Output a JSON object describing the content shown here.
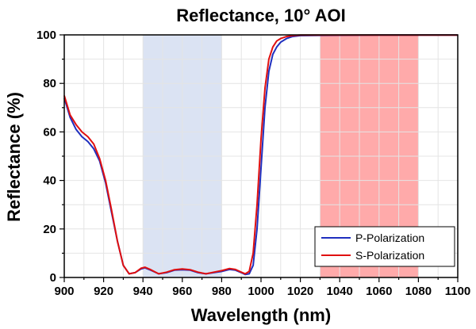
{
  "chart_data": {
    "type": "line",
    "title": "Reflectance, 10° AOI",
    "xlabel": "Wavelength (nm)",
    "ylabel": "Reflectance (%)",
    "xlim": [
      900,
      1100
    ],
    "ylim": [
      0,
      100
    ],
    "grid": true,
    "x_ticks": [
      "900",
      "920",
      "940",
      "960",
      "980",
      "1000",
      "1020",
      "1040",
      "1060",
      "1080",
      "1100"
    ],
    "y_ticks": [
      "0",
      "20",
      "40",
      "60",
      "80",
      "100"
    ],
    "bands": [
      {
        "from": 940,
        "to": 980,
        "color": "#dbe3f3"
      },
      {
        "from": 1030,
        "to": 1080,
        "color": "#ffaaaa"
      }
    ],
    "legend_position": "bottom-right",
    "series": [
      {
        "name": "P-Polarization",
        "color": "#1f2fbf",
        "points": [
          [
            900,
            74
          ],
          [
            903,
            66
          ],
          [
            906,
            61
          ],
          [
            909,
            58
          ],
          [
            912,
            56
          ],
          [
            915,
            53
          ],
          [
            918,
            48
          ],
          [
            921,
            39
          ],
          [
            924,
            27
          ],
          [
            927,
            15
          ],
          [
            930,
            5
          ],
          [
            933,
            1.5
          ],
          [
            936,
            2
          ],
          [
            939,
            3.5
          ],
          [
            941,
            4
          ],
          [
            944,
            3
          ],
          [
            948,
            1.5
          ],
          [
            952,
            2
          ],
          [
            956,
            3
          ],
          [
            960,
            3.2
          ],
          [
            964,
            3
          ],
          [
            968,
            2
          ],
          [
            972,
            1.5
          ],
          [
            976,
            2
          ],
          [
            980,
            2.5
          ],
          [
            984,
            3.3
          ],
          [
            987,
            3
          ],
          [
            990,
            2
          ],
          [
            992,
            1.2
          ],
          [
            994,
            1.5
          ],
          [
            996,
            5
          ],
          [
            998,
            20
          ],
          [
            1000,
            45
          ],
          [
            1002,
            70
          ],
          [
            1004,
            85
          ],
          [
            1006,
            92
          ],
          [
            1008,
            95
          ],
          [
            1010,
            97
          ],
          [
            1013,
            98.5
          ],
          [
            1016,
            99.3
          ],
          [
            1020,
            99.7
          ],
          [
            1030,
            99.8
          ],
          [
            1060,
            99.9
          ],
          [
            1100,
            99.9
          ]
        ]
      },
      {
        "name": "S-Polarization",
        "color": "#e01010",
        "points": [
          [
            900,
            75
          ],
          [
            903,
            67
          ],
          [
            906,
            63
          ],
          [
            909,
            60
          ],
          [
            912,
            58
          ],
          [
            915,
            55
          ],
          [
            918,
            49
          ],
          [
            921,
            40
          ],
          [
            924,
            28
          ],
          [
            927,
            15
          ],
          [
            930,
            5
          ],
          [
            933,
            1.5
          ],
          [
            936,
            2
          ],
          [
            939,
            3.8
          ],
          [
            941,
            4.2
          ],
          [
            944,
            3.2
          ],
          [
            948,
            1.5
          ],
          [
            952,
            2.2
          ],
          [
            956,
            3.2
          ],
          [
            960,
            3.5
          ],
          [
            964,
            3.2
          ],
          [
            968,
            2.2
          ],
          [
            972,
            1.5
          ],
          [
            976,
            2.2
          ],
          [
            980,
            2.8
          ],
          [
            984,
            3.7
          ],
          [
            987,
            3.3
          ],
          [
            990,
            2.2
          ],
          [
            992,
            1.5
          ],
          [
            994,
            2.5
          ],
          [
            996,
            10
          ],
          [
            998,
            30
          ],
          [
            1000,
            57
          ],
          [
            1002,
            78
          ],
          [
            1004,
            90
          ],
          [
            1006,
            95
          ],
          [
            1008,
            97.5
          ],
          [
            1010,
            98.5
          ],
          [
            1013,
            99.3
          ],
          [
            1016,
            99.7
          ],
          [
            1020,
            99.9
          ],
          [
            1030,
            99.9
          ],
          [
            1060,
            99.95
          ],
          [
            1100,
            99.95
          ]
        ]
      }
    ]
  }
}
